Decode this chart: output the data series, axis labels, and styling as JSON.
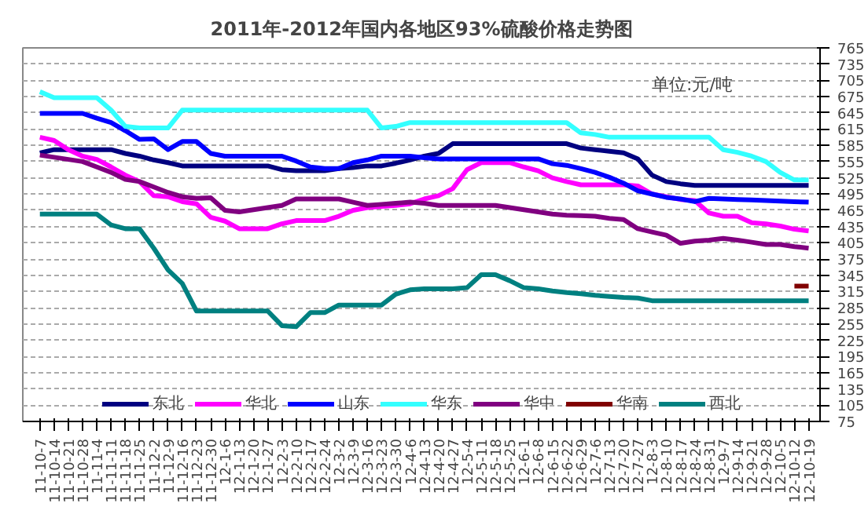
{
  "chart_data": {
    "type": "line",
    "title": "2011年-2012年国内各地区93%硫酸价格走势图",
    "annotations": [
      "单位:元/吨"
    ],
    "categories": [
      "11-10-7",
      "11-10-14",
      "11-10-21",
      "11-10-28",
      "11-11-4",
      "11-11-11",
      "11-11-18",
      "11-11-25",
      "11-12-2",
      "11-12-9",
      "11-12-16",
      "11-12-23",
      "11-12-30",
      "12-1-6",
      "12-1-13",
      "12-1-20",
      "12-1-27",
      "12-2-3",
      "12-2-10",
      "12-2-17",
      "12-2-24",
      "12-3-2",
      "12-3-9",
      "12-3-16",
      "12-3-23",
      "12-3-30",
      "12-4-6",
      "12-4-13",
      "12-4-20",
      "12-4-27",
      "12-5-4",
      "12-5-11",
      "12-5-18",
      "12-5-25",
      "12-6-1",
      "12-6-8",
      "12-6-15",
      "12-6-22",
      "12-6-29",
      "12-7-6",
      "12-7-13",
      "12-7-20",
      "12-7-27",
      "12-8-3",
      "12-8-10",
      "12-8-17",
      "12-8-24",
      "12-8-31",
      "12-9-7",
      "12-9-14",
      "12-9-21",
      "12-9-28",
      "12-10-5",
      "12-10-12",
      "12-10-19"
    ],
    "series": [
      {
        "name": "东北",
        "color": "#000080",
        "values": [
          571,
          577,
          577,
          577,
          577,
          577,
          570,
          565,
          558,
          553,
          547,
          547,
          547,
          547,
          547,
          547,
          547,
          540,
          538,
          538,
          538,
          542,
          544,
          547,
          547,
          552,
          558,
          565,
          570,
          588,
          588,
          588,
          588,
          588,
          588,
          588,
          588,
          588,
          580,
          577,
          574,
          571,
          560,
          530,
          518,
          514,
          511,
          511,
          511,
          511,
          511,
          511,
          511,
          511,
          511
        ]
      },
      {
        "name": "华北",
        "color": "#ff00ff",
        "values": [
          600,
          594,
          577,
          565,
          559,
          545,
          530,
          518,
          492,
          490,
          481,
          477,
          452,
          445,
          431,
          431,
          431,
          440,
          446,
          446,
          446,
          454,
          465,
          470,
          472,
          474,
          477,
          486,
          492,
          505,
          540,
          553,
          553,
          553,
          545,
          538,
          525,
          518,
          512,
          512,
          512,
          512,
          510,
          495,
          490,
          485,
          483,
          460,
          454,
          454,
          442,
          440,
          436,
          430,
          427
        ]
      },
      {
        "name": "山东",
        "color": "#0000ff",
        "values": [
          644,
          644,
          644,
          644,
          635,
          627,
          612,
          596,
          597,
          577,
          592,
          592,
          570,
          565,
          565,
          565,
          565,
          565,
          556,
          545,
          542,
          542,
          553,
          558,
          565,
          565,
          565,
          562,
          560,
          560,
          560,
          560,
          560,
          560,
          560,
          560,
          551,
          548,
          542,
          535,
          526,
          515,
          501,
          495,
          489,
          486,
          481,
          487,
          486,
          485,
          484,
          483,
          482,
          481,
          480
        ]
      },
      {
        "name": "华东",
        "color": "#33ffff",
        "values": [
          684,
          673,
          673,
          673,
          673,
          650,
          620,
          617,
          617,
          617,
          650,
          650,
          650,
          650,
          650,
          650,
          650,
          650,
          650,
          650,
          650,
          650,
          650,
          650,
          617,
          620,
          627,
          627,
          627,
          627,
          627,
          627,
          627,
          627,
          627,
          627,
          627,
          627,
          608,
          605,
          600,
          600,
          600,
          600,
          600,
          600,
          600,
          600,
          577,
          572,
          565,
          555,
          535,
          521,
          521
        ]
      },
      {
        "name": "华中",
        "color": "#800080",
        "values": [
          567,
          563,
          559,
          555,
          545,
          535,
          522,
          518,
          508,
          498,
          490,
          487,
          488,
          465,
          462,
          466,
          470,
          474,
          486,
          486,
          486,
          486,
          480,
          474,
          476,
          478,
          480,
          478,
          474,
          474,
          474,
          474,
          474,
          470,
          466,
          462,
          458,
          456,
          455,
          454,
          450,
          448,
          431,
          425,
          419,
          404,
          408,
          410,
          413,
          410,
          406,
          402,
          402,
          398,
          395
        ]
      },
      {
        "name": "华南",
        "color": "#800000",
        "values": [
          null,
          null,
          null,
          null,
          null,
          null,
          null,
          null,
          null,
          null,
          null,
          null,
          null,
          null,
          null,
          null,
          null,
          null,
          null,
          null,
          null,
          null,
          null,
          null,
          null,
          null,
          null,
          null,
          null,
          null,
          null,
          null,
          null,
          null,
          null,
          null,
          null,
          null,
          null,
          null,
          null,
          null,
          null,
          null,
          null,
          null,
          null,
          null,
          null,
          null,
          null,
          null,
          null,
          325,
          325
        ]
      },
      {
        "name": "西北",
        "color": "#008080",
        "values": [
          458,
          458,
          458,
          458,
          458,
          438,
          431,
          431,
          395,
          355,
          330,
          279,
          279,
          279,
          279,
          279,
          279,
          252,
          250,
          276,
          276,
          290,
          290,
          290,
          290,
          310,
          318,
          320,
          320,
          320,
          322,
          346,
          346,
          335,
          322,
          320,
          316,
          313,
          311,
          308,
          306,
          304,
          303,
          298,
          298,
          298,
          298,
          298,
          298,
          298,
          298,
          298,
          298,
          298,
          298
        ]
      }
    ],
    "ylim": [
      75,
      765
    ],
    "yticks": [
      75,
      105,
      135,
      165,
      195,
      225,
      255,
      285,
      315,
      345,
      375,
      405,
      435,
      465,
      495,
      525,
      555,
      585,
      615,
      645,
      675,
      705,
      735,
      765
    ],
    "grid": "y",
    "legend": "bottom",
    "marker": "none",
    "line_style": "solid"
  }
}
